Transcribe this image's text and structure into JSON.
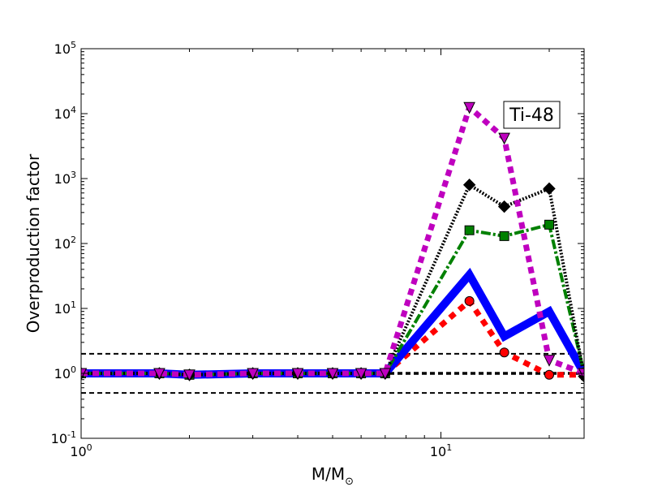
{
  "chart_data": {
    "type": "line",
    "title": "",
    "xlabel": "M/M",
    "xlabel_sub": "⊙",
    "ylabel": "Overproduction factor",
    "xscale": "log",
    "yscale": "log",
    "xlim": [
      1,
      25
    ],
    "ylim": [
      0.1,
      100000
    ],
    "grid": false,
    "annotation": "Ti-48",
    "x_ticks": [
      {
        "value": 1,
        "base": "10",
        "exp": "0"
      },
      {
        "value": 10,
        "base": "10",
        "exp": "1"
      }
    ],
    "y_ticks": [
      {
        "value": 0.1,
        "base": "10",
        "exp": "-1"
      },
      {
        "value": 1,
        "base": "10",
        "exp": "0"
      },
      {
        "value": 10,
        "base": "10",
        "exp": "1"
      },
      {
        "value": 100,
        "base": "10",
        "exp": "2"
      },
      {
        "value": 1000,
        "base": "10",
        "exp": "3"
      },
      {
        "value": 10000,
        "base": "10",
        "exp": "4"
      },
      {
        "value": 100000,
        "base": "10",
        "exp": "5"
      }
    ],
    "reference_lines": [
      {
        "y": 2,
        "width": 2
      },
      {
        "y": 1,
        "width": 3.5
      },
      {
        "y": 0.5,
        "width": 2
      }
    ],
    "series": [
      {
        "color": "#ff0000",
        "dash": "8,7",
        "width": 7,
        "marker": "circle",
        "x": [
          1,
          1.65,
          2,
          3,
          4,
          5,
          6,
          7,
          12,
          15,
          20,
          25
        ],
        "y": [
          1,
          1,
          0.95,
          1,
          1,
          1,
          1,
          1,
          13,
          2.1,
          0.95,
          0.95
        ]
      },
      {
        "color": "#0000ff",
        "dash": "",
        "width": 10,
        "marker": "none",
        "x": [
          1,
          1.65,
          2,
          3,
          4,
          5,
          6,
          7,
          12,
          15,
          20,
          25
        ],
        "y": [
          1,
          1,
          0.95,
          1,
          1,
          1,
          1,
          1,
          33,
          3.7,
          9,
          1
        ]
      },
      {
        "color": "#008000",
        "dash": "3,3,12,3",
        "width": 4,
        "marker": "square",
        "x": [
          1,
          1.65,
          2,
          3,
          4,
          5,
          6,
          7,
          12,
          15,
          20,
          25
        ],
        "y": [
          1,
          1,
          0.95,
          1,
          1,
          1,
          1,
          1,
          160,
          130,
          195,
          1
        ]
      },
      {
        "color": "#000000",
        "dash": "2,2",
        "width": 4,
        "marker": "diamond",
        "x": [
          1,
          1.65,
          2,
          3,
          4,
          5,
          6,
          7,
          12,
          15,
          20,
          25
        ],
        "y": [
          1,
          1,
          0.95,
          1,
          1,
          1,
          1,
          1,
          800,
          370,
          700,
          0.9
        ]
      },
      {
        "color": "#bf00bf",
        "dash": "8,6",
        "width": 7,
        "marker": "triangle-down",
        "x": [
          1,
          1.65,
          2,
          3,
          4,
          5,
          6,
          7,
          12,
          15,
          20,
          25
        ],
        "y": [
          1,
          1,
          0.95,
          1,
          1,
          1,
          1,
          1,
          12500,
          4200,
          1.6,
          1
        ]
      }
    ]
  }
}
